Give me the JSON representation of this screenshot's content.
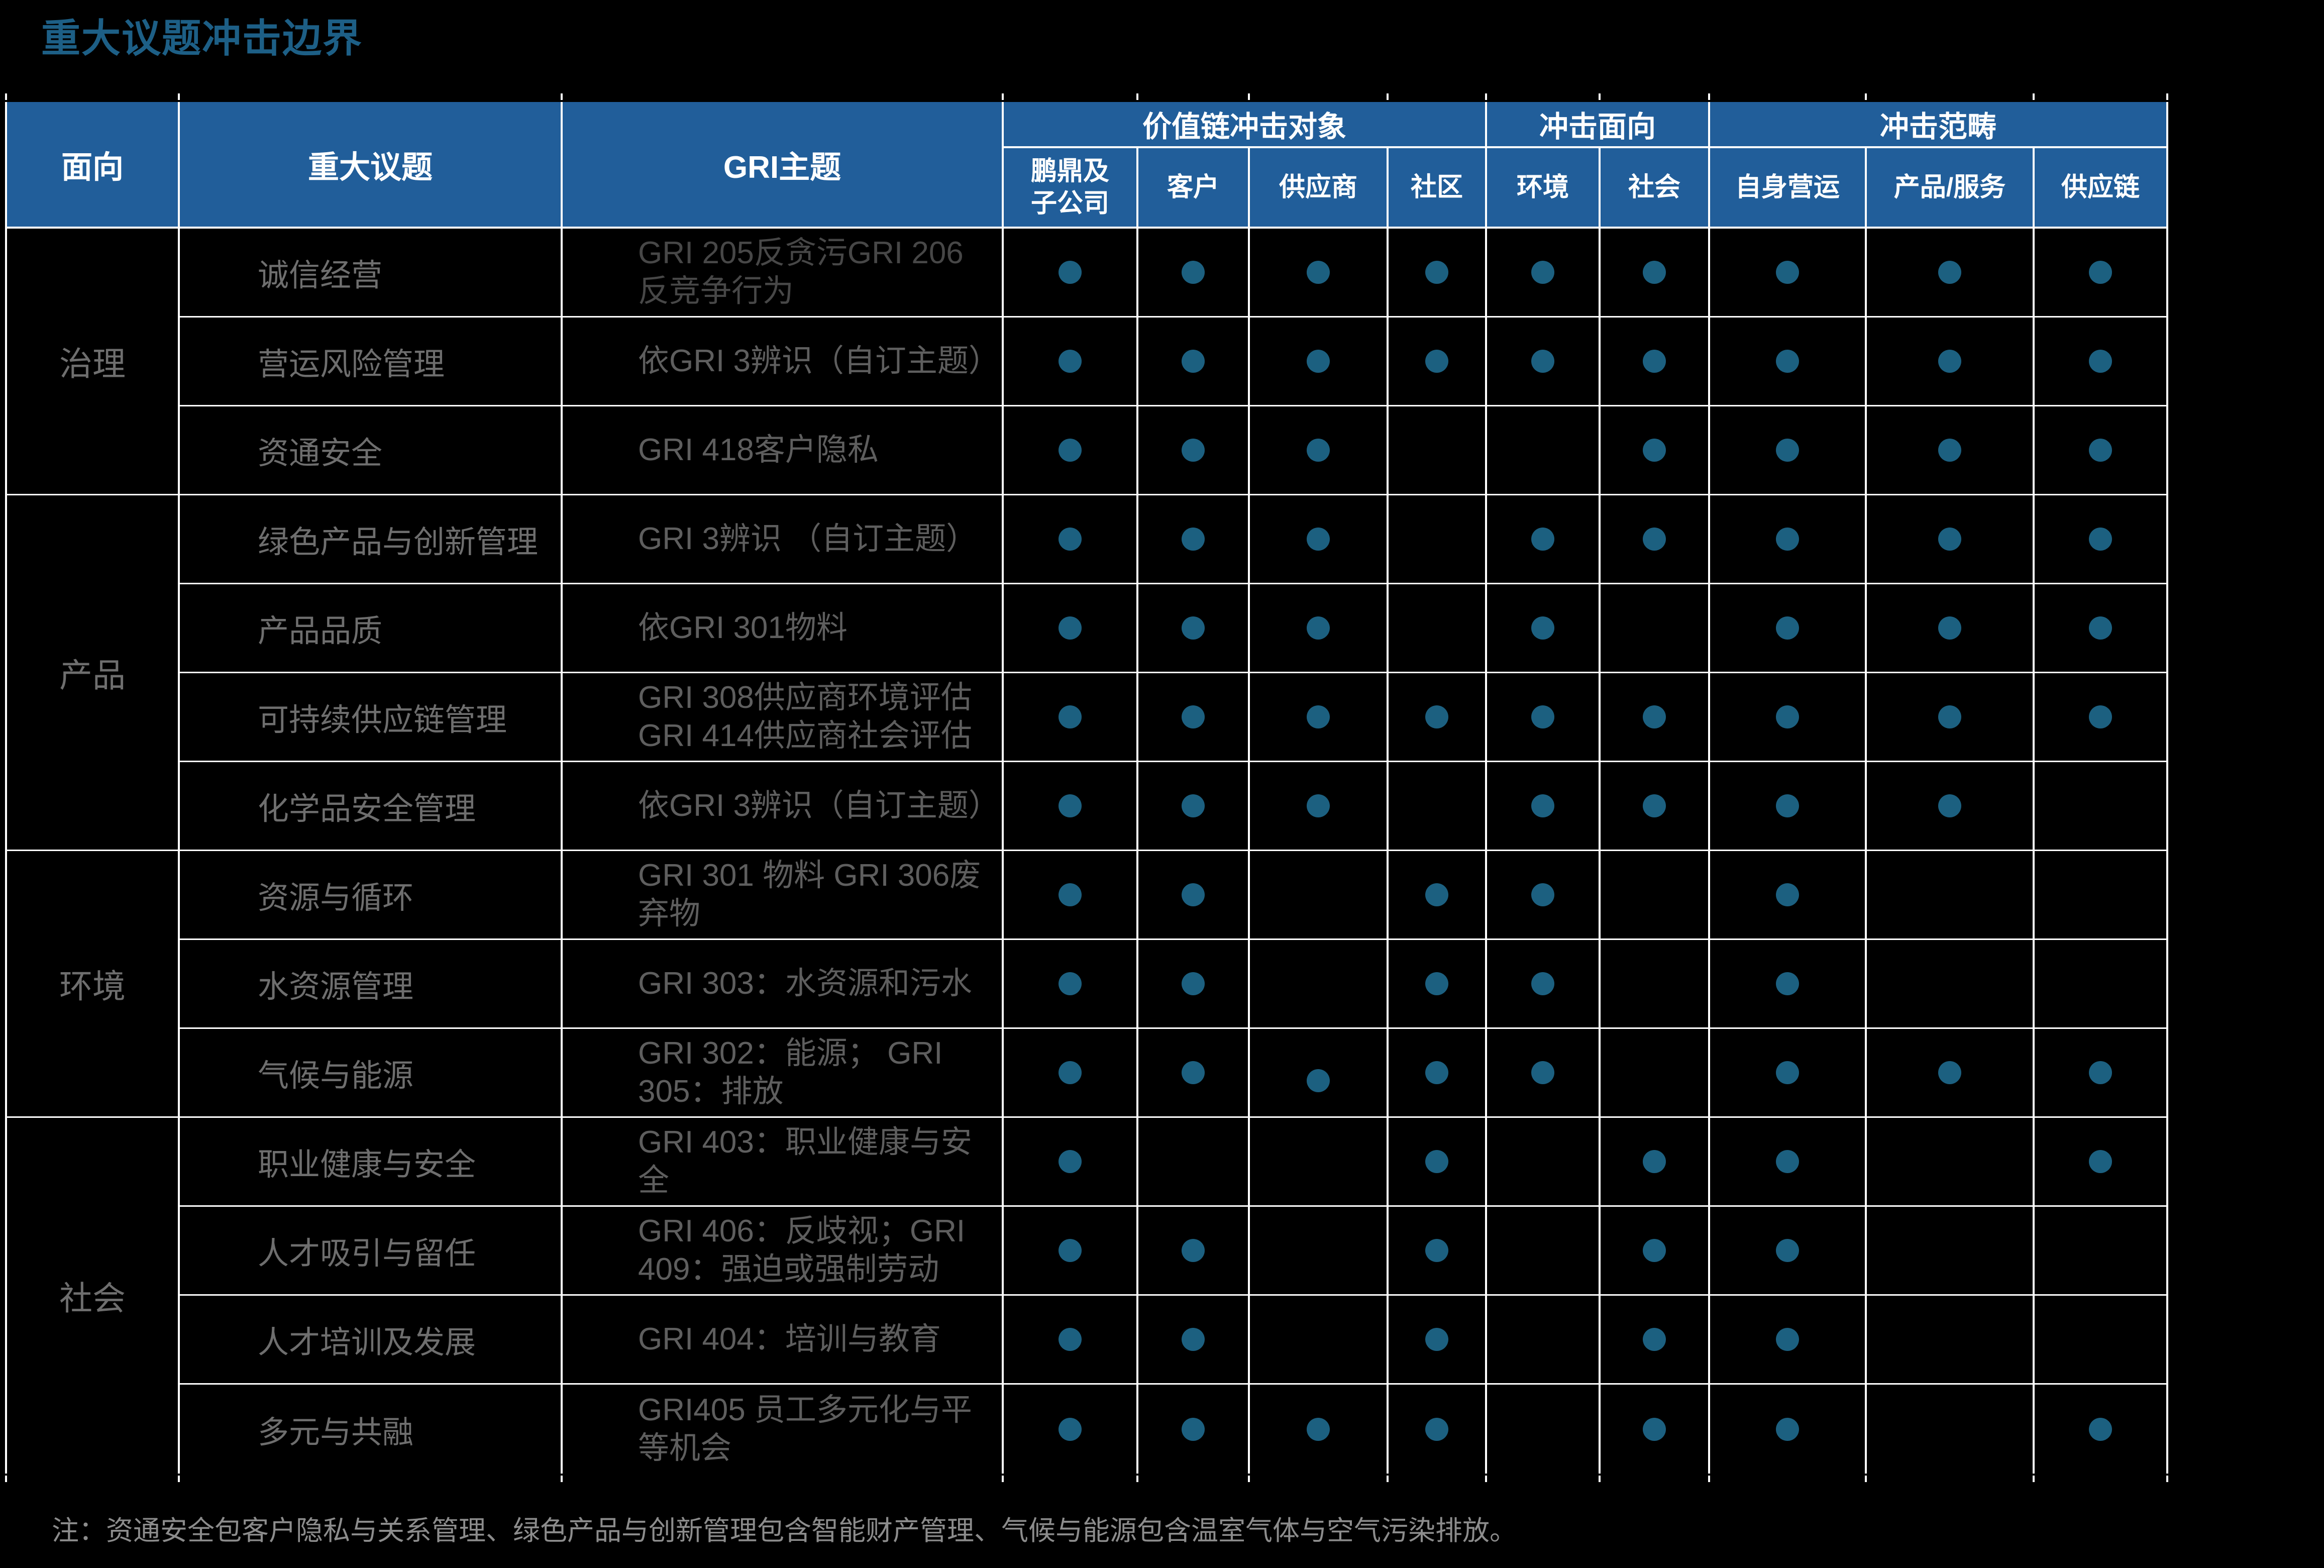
{
  "title": "重大议题冲击边界",
  "table": {
    "header": {
      "aspect": "面向",
      "topic": "重大议题",
      "gri": "GRI主题",
      "groups": [
        {
          "label": "价值链冲击对象",
          "columns": [
            "鹏鼎及\n子公司",
            "客户",
            "供应商",
            "社区"
          ]
        },
        {
          "label": "冲击面向",
          "columns": [
            "环境",
            "社会"
          ]
        },
        {
          "label": "冲击范畴",
          "columns": [
            "自身营运",
            "产品/服务",
            "供应链"
          ]
        }
      ]
    },
    "sections": [
      {
        "aspect": "治理",
        "rows": [
          {
            "topic": "诚信经营",
            "gri": "GRI 205反贪污GRI 206\n反竞争行为",
            "dim": true,
            "dots": [
              1,
              1,
              1,
              1,
              1,
              1,
              1,
              1,
              1
            ]
          },
          {
            "topic": "营运风险管理",
            "gri": "依GRI 3辨识（自订主题）",
            "dots": [
              1,
              1,
              1,
              1,
              1,
              1,
              1,
              1,
              1
            ]
          },
          {
            "topic": "资通安全",
            "gri": "GRI 418客户隐私",
            "dots": [
              1,
              1,
              1,
              0,
              0,
              1,
              1,
              1,
              1
            ]
          }
        ]
      },
      {
        "aspect": "产品",
        "rows": [
          {
            "topic": "绿色产品与创新管理",
            "gri": "GRI 3辨识 （自订主题）",
            "dots": [
              1,
              1,
              1,
              0,
              1,
              1,
              1,
              1,
              1
            ]
          },
          {
            "topic": "产品品质",
            "gri": "依GRI 301物料",
            "dots": [
              1,
              1,
              1,
              0,
              1,
              0,
              1,
              1,
              1
            ]
          },
          {
            "topic": "可持续供应链管理",
            "gri": "GRI 308供应商环境评估\nGRI 414供应商社会评估",
            "dots": [
              1,
              1,
              1,
              1,
              1,
              1,
              1,
              1,
              1
            ]
          },
          {
            "topic": "化学品安全管理",
            "gri": "依GRI 3辨识（自订主题）",
            "dots": [
              1,
              1,
              1,
              0,
              1,
              1,
              1,
              1,
              0
            ]
          }
        ]
      },
      {
        "aspect": "环境",
        "rows": [
          {
            "topic": "资源与循环",
            "gri": "GRI 301 物料 GRI 306废\n弃物",
            "dots": [
              1,
              1,
              0,
              1,
              1,
              0,
              1,
              0,
              0
            ]
          },
          {
            "topic": "水资源管理",
            "gri": "GRI 303：水资源和污水",
            "dots": [
              1,
              1,
              0,
              1,
              1,
              0,
              1,
              0,
              0
            ]
          },
          {
            "topic": "气候与能源",
            "gri": "GRI 302：能源； GRI\n305：排放",
            "dots": [
              1,
              1,
              "L",
              1,
              1,
              0,
              1,
              1,
              1
            ]
          }
        ]
      },
      {
        "aspect": "社会",
        "rows": [
          {
            "topic": "职业健康与安全",
            "gri": "GRI 403：职业健康与安\n全",
            "dots": [
              1,
              0,
              0,
              1,
              0,
              1,
              1,
              0,
              1
            ]
          },
          {
            "topic": "人才吸引与留任",
            "gri": "GRI 406：反歧视；GRI\n409：强迫或强制劳动",
            "dots": [
              1,
              1,
              0,
              1,
              0,
              1,
              1,
              0,
              0
            ]
          },
          {
            "topic": "人才培训及发展",
            "gri": "GRI 404：培训与教育",
            "dots": [
              1,
              1,
              0,
              1,
              0,
              1,
              1,
              0,
              0
            ]
          },
          {
            "topic": "多元与共融",
            "gri": "GRI405 员工多元化与平\n等机会",
            "dots": [
              1,
              1,
              1,
              1,
              0,
              1,
              1,
              0,
              1
            ]
          }
        ]
      }
    ]
  },
  "note": "注：资通安全包客户隐私与关系管理、绿色产品与创新管理包含智能财产管理、气候与能源包含温室气体与空气污染排放。",
  "colors": {
    "background": "#000000",
    "title": "#1D5F86",
    "header_bg": "#215E9A",
    "header_text": "#FFFFFF",
    "grid_line": "#FFFFFF",
    "dot": "#1C6080",
    "aspect_text": "#6E6E6E",
    "topic_text": "#6E6E6E",
    "gri_text": "#5E5E5E",
    "gri_text_dim": "#474747",
    "note_text": "#8C8C8C"
  }
}
